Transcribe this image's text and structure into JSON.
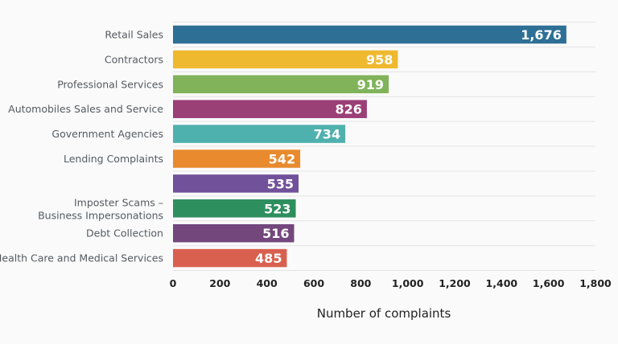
{
  "chart_data": {
    "type": "bar",
    "orientation": "horizontal",
    "categories": [
      "Retail Sales",
      "Contractors",
      "Professional Services",
      "Automobiles Sales and Service",
      "Government Agencies",
      "Lending Complaints",
      "",
      "Imposter Scams – Business Impersonations",
      "Debt Collection",
      "Health Care and Medical Services"
    ],
    "values": [
      1676,
      958,
      919,
      826,
      734,
      542,
      535,
      523,
      516,
      485
    ],
    "value_labels": [
      "1,676",
      "958",
      "919",
      "826",
      "734",
      "542",
      "535",
      "523",
      "516",
      "485"
    ],
    "colors": [
      "#2e6f96",
      "#efb92f",
      "#80b35a",
      "#9b3f77",
      "#4fb1ad",
      "#e88a2d",
      "#71519a",
      "#2e8f5e",
      "#73477c",
      "#d9604f"
    ],
    "xlabel": "Number of complaints",
    "ylabel": "",
    "title": "",
    "xlim": [
      0,
      1800
    ],
    "x_ticks": [
      0,
      200,
      400,
      600,
      800,
      1000,
      1200,
      1400,
      1600,
      1800
    ],
    "x_tick_labels": [
      "0",
      "200",
      "400",
      "600",
      "800",
      "1,000",
      "1,200",
      "1,400",
      "1,600",
      "1,800"
    ],
    "grid": true
  }
}
